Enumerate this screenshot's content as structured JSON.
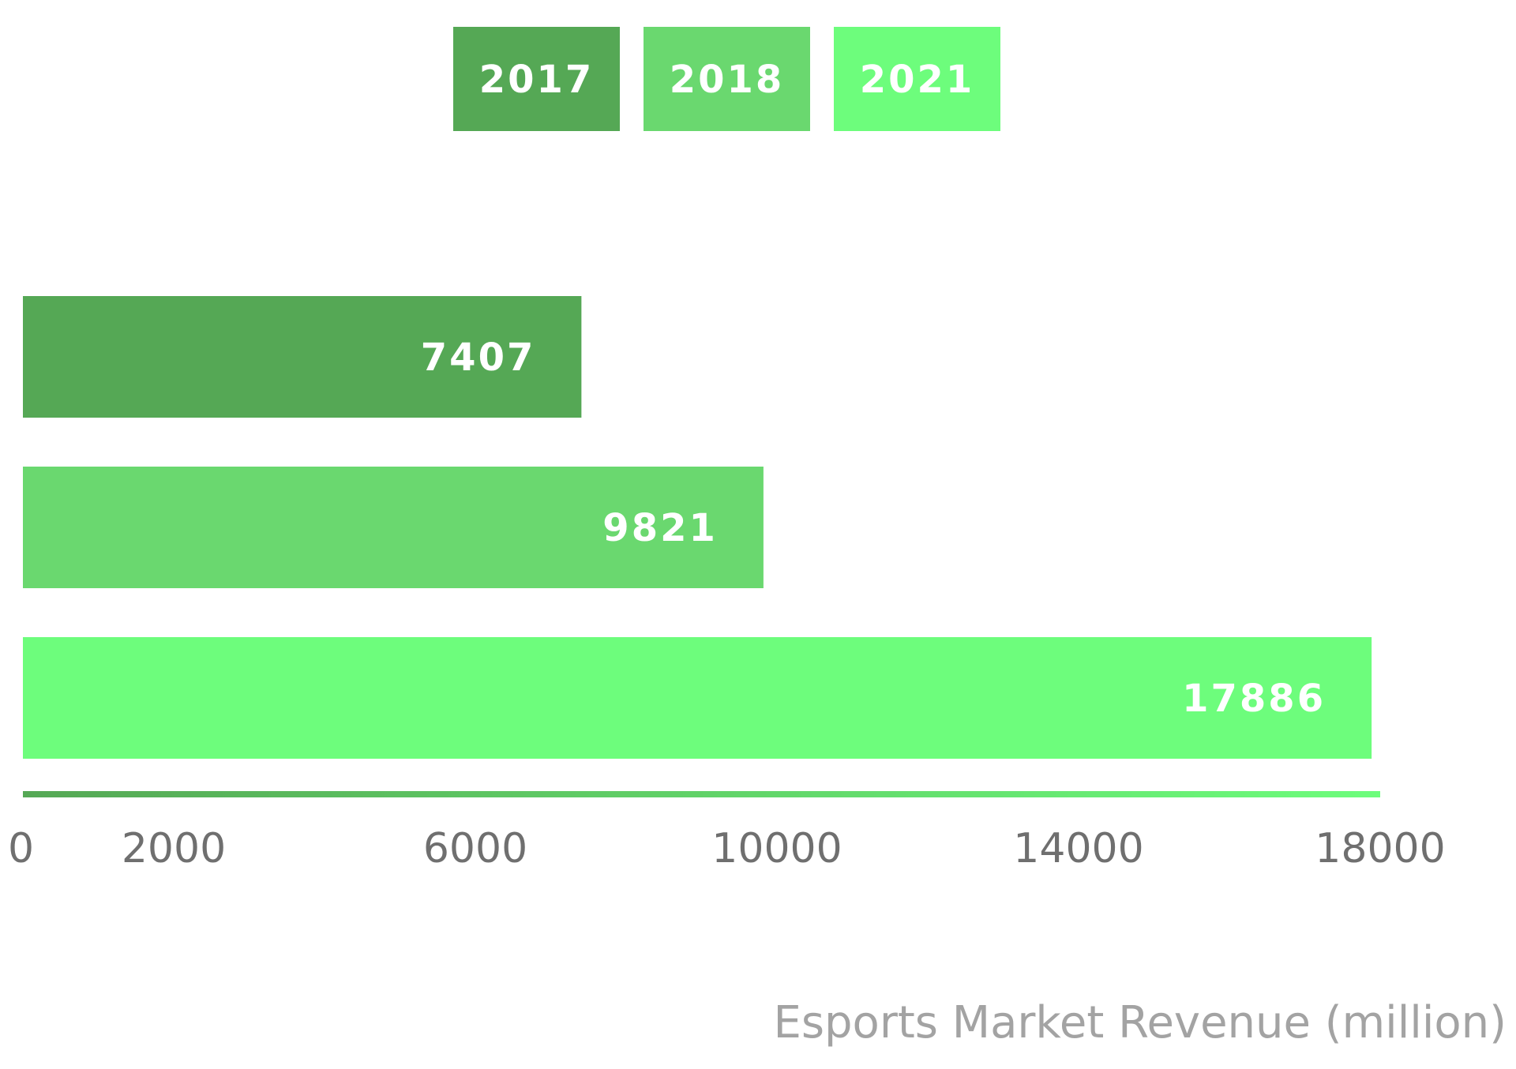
{
  "chart_data": {
    "type": "bar",
    "orientation": "horizontal",
    "categories": [
      "2017",
      "2018",
      "2021"
    ],
    "values": [
      7407,
      9821,
      17886
    ],
    "colors": [
      "#55a855",
      "#6ad86f",
      "#6dfd7c"
    ],
    "legend": {
      "placement": "top-center",
      "entries": [
        "2017",
        "2018",
        "2021"
      ]
    },
    "data_labels": [
      "7407",
      "9821",
      "17886"
    ],
    "xlabel": "Esports Market Revenue (million)",
    "xticks": [
      0,
      2000,
      6000,
      10000,
      14000,
      18000
    ],
    "xtick_labels": [
      "0",
      "2000",
      "6000",
      "10000",
      "14000",
      "18000"
    ],
    "xlim": [
      0,
      18000
    ],
    "grid": false
  }
}
